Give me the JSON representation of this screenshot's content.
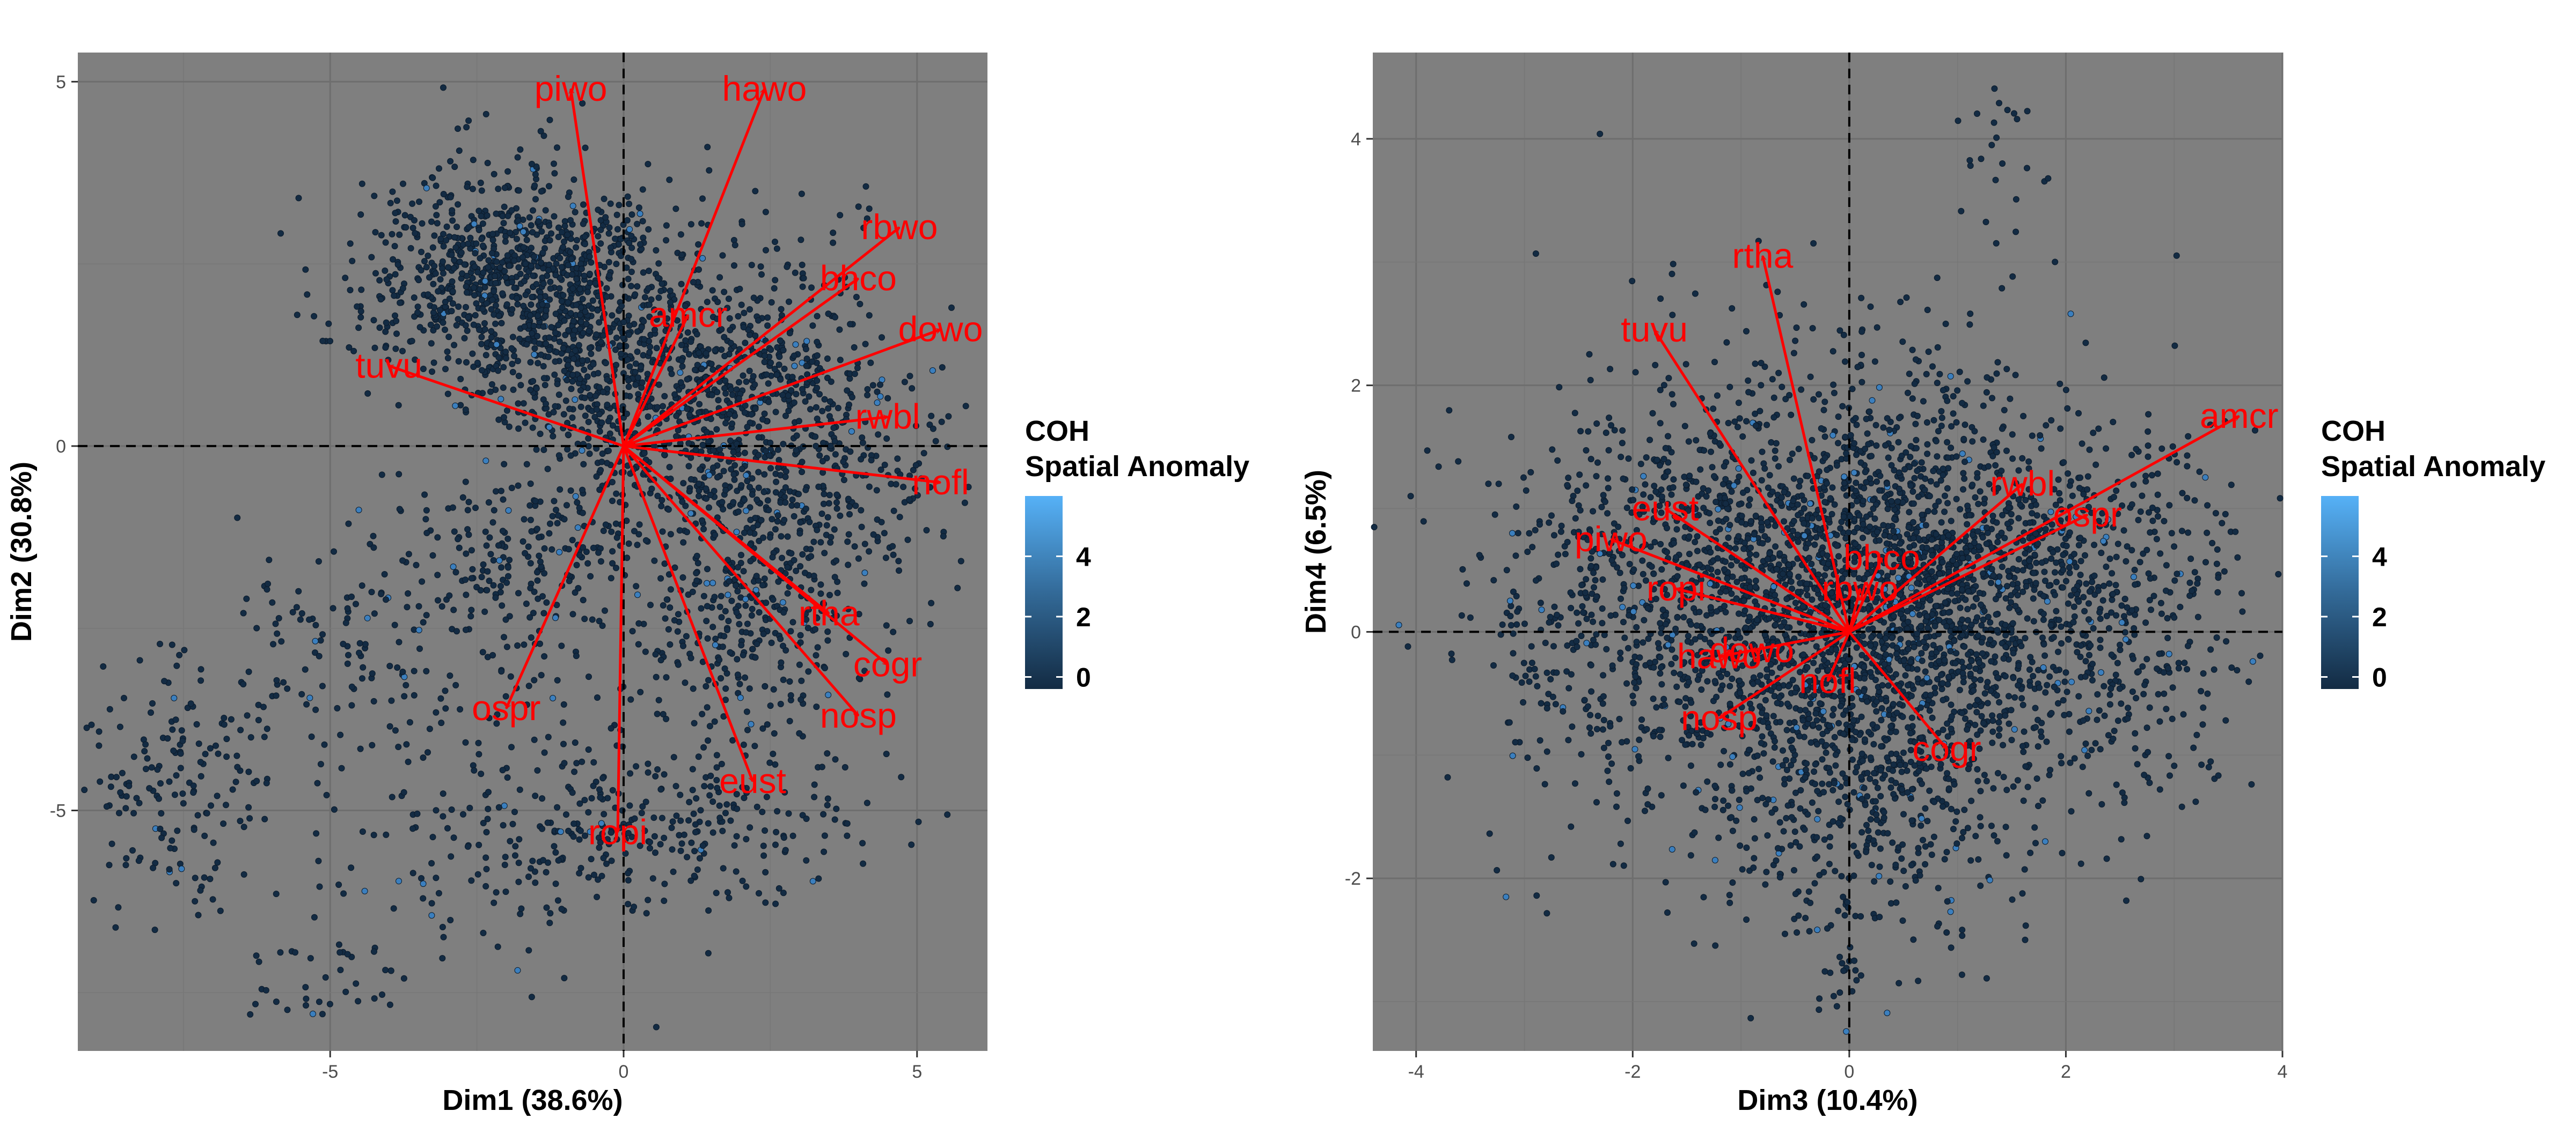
{
  "chart_data": [
    {
      "type": "scatter",
      "subtype": "pca-biplot",
      "title": "",
      "xlabel": "Dim1 (38.6%)",
      "ylabel": "Dim2 (30.8%)",
      "xlim": [
        -9.3,
        6.2
      ],
      "ylim": [
        -8.3,
        5.4
      ],
      "xticks": [
        -5,
        0,
        5
      ],
      "yticks": [
        -5,
        0,
        5
      ],
      "grid": true,
      "panel_background": "#7f7f7f",
      "point_color_scale": {
        "low": "#132b43",
        "high": "#56b1f7"
      },
      "vectors": [
        {
          "label": "piwo",
          "x": -0.9,
          "y": 4.9
        },
        {
          "label": "hawo",
          "x": 2.4,
          "y": 4.9
        },
        {
          "label": "rbwo",
          "x": 4.7,
          "y": 3.0
        },
        {
          "label": "bhco",
          "x": 4.0,
          "y": 2.3
        },
        {
          "label": "amcr",
          "x": 1.1,
          "y": 1.8
        },
        {
          "label": "dowo",
          "x": 5.4,
          "y": 1.6
        },
        {
          "label": "tuvu",
          "x": -4.0,
          "y": 1.1
        },
        {
          "label": "rwbl",
          "x": 4.5,
          "y": 0.4
        },
        {
          "label": "nofl",
          "x": 5.4,
          "y": -0.5
        },
        {
          "label": "rtha",
          "x": 3.5,
          "y": -2.3
        },
        {
          "label": "cogr",
          "x": 4.5,
          "y": -3.0
        },
        {
          "label": "nosp",
          "x": 4.0,
          "y": -3.7
        },
        {
          "label": "ospr",
          "x": -2.0,
          "y": -3.6
        },
        {
          "label": "eust",
          "x": 2.2,
          "y": -4.6
        },
        {
          "label": "ropi",
          "x": -0.1,
          "y": -5.3
        }
      ]
    },
    {
      "type": "scatter",
      "subtype": "pca-biplot",
      "title": "",
      "xlabel": "Dim3 (10.4%)",
      "ylabel": "Dim4 (6.5%)",
      "xlim": [
        -4.4,
        4.0
      ],
      "ylim": [
        -3.4,
        4.7
      ],
      "xticks": [
        -4,
        -2,
        0,
        2,
        4
      ],
      "yticks": [
        -2,
        0,
        2,
        4
      ],
      "grid": true,
      "panel_background": "#7f7f7f",
      "point_color_scale": {
        "low": "#132b43",
        "high": "#56b1f7"
      },
      "vectors": [
        {
          "label": "rtha",
          "x": -0.8,
          "y": 3.05
        },
        {
          "label": "tuvu",
          "x": -1.8,
          "y": 2.45
        },
        {
          "label": "amcr",
          "x": 3.6,
          "y": 1.75
        },
        {
          "label": "rwbl",
          "x": 1.6,
          "y": 1.2
        },
        {
          "label": "eust",
          "x": -1.7,
          "y": 1.0
        },
        {
          "label": "ospr",
          "x": 2.2,
          "y": 0.95
        },
        {
          "label": "bhco",
          "x": 0.3,
          "y": 0.6
        },
        {
          "label": "piwo",
          "x": -2.2,
          "y": 0.75
        },
        {
          "label": "rbwo",
          "x": 0.1,
          "y": 0.35
        },
        {
          "label": "ropi",
          "x": -1.6,
          "y": 0.35
        },
        {
          "label": "dowo",
          "x": -0.9,
          "y": -0.15
        },
        {
          "label": "hawo",
          "x": -1.2,
          "y": -0.2
        },
        {
          "label": "nofl",
          "x": -0.2,
          "y": -0.4
        },
        {
          "label": "nosp",
          "x": -1.2,
          "y": -0.7
        },
        {
          "label": "cogr",
          "x": 0.9,
          "y": -0.95
        }
      ]
    }
  ],
  "legend": {
    "title_line1": "COH",
    "title_line2": "Spatial Anomaly",
    "ticks": [
      "0",
      "2",
      "4"
    ],
    "tick_values": [
      0,
      2,
      4
    ],
    "range": [
      -0.4,
      6.0
    ]
  }
}
